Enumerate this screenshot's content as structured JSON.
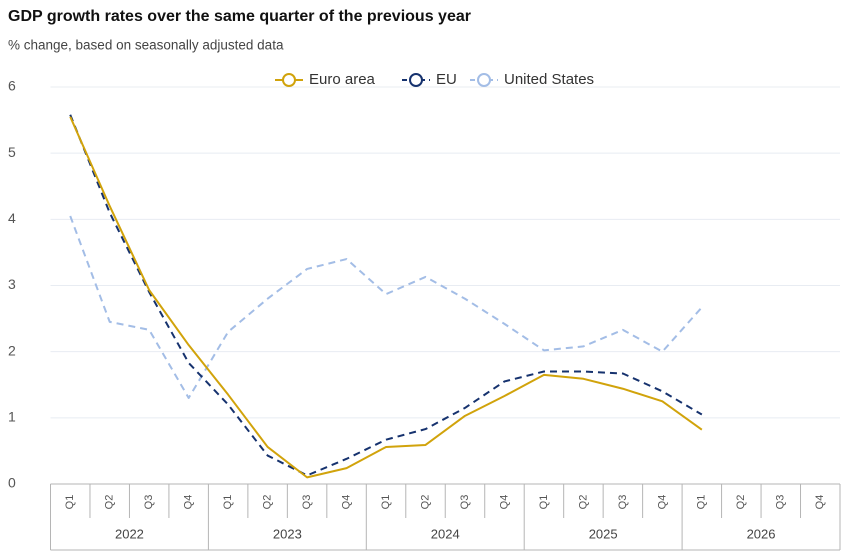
{
  "chart_data": {
    "type": "line",
    "title": "GDP growth rates over the same quarter of the previous year",
    "subtitle": "% change, based on seasonally adjusted data",
    "categories": [
      "Q1",
      "Q2",
      "Q3",
      "Q4",
      "Q1",
      "Q2",
      "Q3",
      "Q4",
      "Q1",
      "Q2",
      "Q3",
      "Q4",
      "Q1",
      "Q2",
      "Q3",
      "Q4",
      "Q1",
      "Q2",
      "Q3",
      "Q4"
    ],
    "years": [
      "2022",
      "2023",
      "2024",
      "2025",
      "2026"
    ],
    "series": [
      {
        "name": "Euro area",
        "color": "#d1a30b",
        "dash": false,
        "values": [
          5.55,
          4.2,
          2.93,
          2.1,
          1.35,
          0.56,
          0.1,
          0.24,
          0.56,
          0.59,
          1.03,
          1.33,
          1.65,
          1.59,
          1.44,
          1.25,
          0.82,
          null,
          null,
          null
        ]
      },
      {
        "name": "EU",
        "color": "#16326e",
        "dash": true,
        "values": [
          5.58,
          4.1,
          2.9,
          1.83,
          1.2,
          0.43,
          0.13,
          0.38,
          0.67,
          0.83,
          1.15,
          1.55,
          1.7,
          1.7,
          1.67,
          1.4,
          1.05,
          null,
          null,
          null
        ]
      },
      {
        "name": "United States",
        "color": "#a3bde6",
        "dash": true,
        "values": [
          4.05,
          2.45,
          2.33,
          1.3,
          2.3,
          2.8,
          3.25,
          3.4,
          2.87,
          3.13,
          2.8,
          2.42,
          2.02,
          2.08,
          2.33,
          2.0,
          2.67,
          null,
          null,
          null
        ]
      }
    ],
    "ylim": [
      0,
      6
    ],
    "yticks": [
      0,
      1,
      2,
      3,
      4,
      5,
      6
    ],
    "grid": true,
    "legend": "top"
  }
}
